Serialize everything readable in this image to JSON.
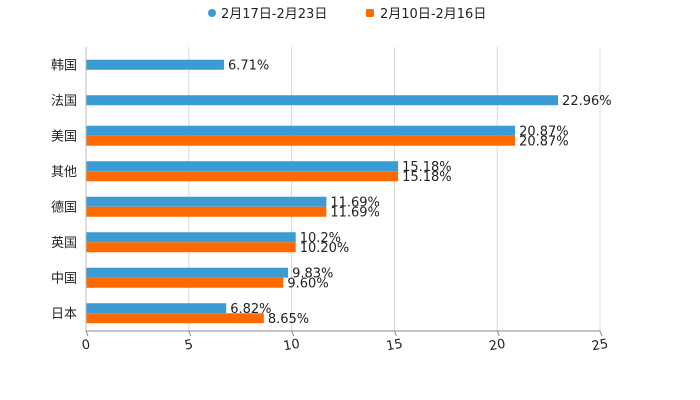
{
  "chart_data": {
    "type": "bar",
    "orientation": "horizontal",
    "title": "",
    "xlabel": "",
    "ylabel": "",
    "xlim": [
      0,
      25
    ],
    "x_ticks": [
      "0",
      "5",
      "10",
      "15",
      "20",
      "25"
    ],
    "grid": true,
    "legend_position": "top-center",
    "categories": [
      "韩国",
      "法国",
      "美国",
      "其他",
      "德国",
      "英国",
      "中国",
      "日本"
    ],
    "series": [
      {
        "name": "2月17日-2月23日",
        "color": "#3a9bd5",
        "values": [
          6.71,
          22.96,
          20.87,
          15.18,
          11.69,
          10.2,
          9.83,
          6.82
        ],
        "labels": [
          "6.71%",
          "22.96%",
          "20.87%",
          "15.18%",
          "11.69%",
          "10.2%",
          "9.83%",
          "6.82%"
        ]
      },
      {
        "name": "2月10日-2月16日",
        "color": "#ff6a00",
        "values": [
          null,
          null,
          20.87,
          15.18,
          11.69,
          10.2,
          9.6,
          8.65
        ],
        "labels": [
          null,
          null,
          "20.87%",
          "15.18%",
          "11.69%",
          "10.20%",
          "9.60%",
          "8.65%"
        ]
      }
    ]
  }
}
